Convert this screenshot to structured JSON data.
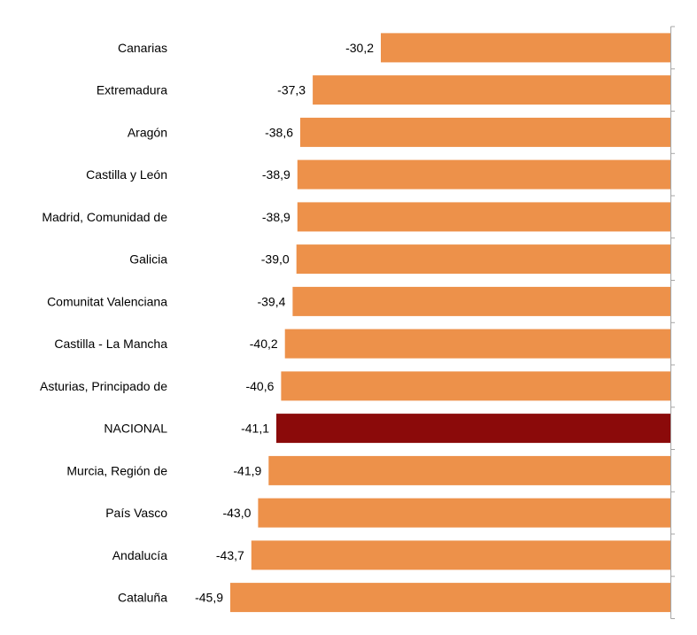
{
  "colors": {
    "bar": "#ED914A",
    "highlight": "#8B0A0A",
    "axis": "#A6A6A6",
    "text": "#000000"
  },
  "chart_data": {
    "type": "bar",
    "orientation": "horizontal",
    "categories": [
      "Canarias",
      "Extremadura",
      "Aragón",
      "Castilla y León",
      "Madrid, Comunidad de",
      "Galicia",
      "Comunitat Valenciana",
      "Castilla - La Mancha",
      "Asturias, Principado de",
      "NACIONAL",
      "Murcia, Región de",
      "País Vasco",
      "Andalucía",
      "Cataluña"
    ],
    "values": [
      -30.2,
      -37.3,
      -38.6,
      -38.9,
      -38.9,
      -39.0,
      -39.4,
      -40.2,
      -40.6,
      -41.1,
      -41.9,
      -43.0,
      -43.7,
      -45.9
    ],
    "value_labels": [
      "-30,2",
      "-37,3",
      "-38,6",
      "-38,9",
      "-38,9",
      "-39,0",
      "-39,4",
      "-40,2",
      "-40,6",
      "-41,1",
      "-41,9",
      "-43,0",
      "-43,7",
      "-45,9"
    ],
    "highlight_category": "NACIONAL",
    "xlim": [
      -47.1,
      0
    ],
    "grid": false,
    "legend": "none"
  }
}
